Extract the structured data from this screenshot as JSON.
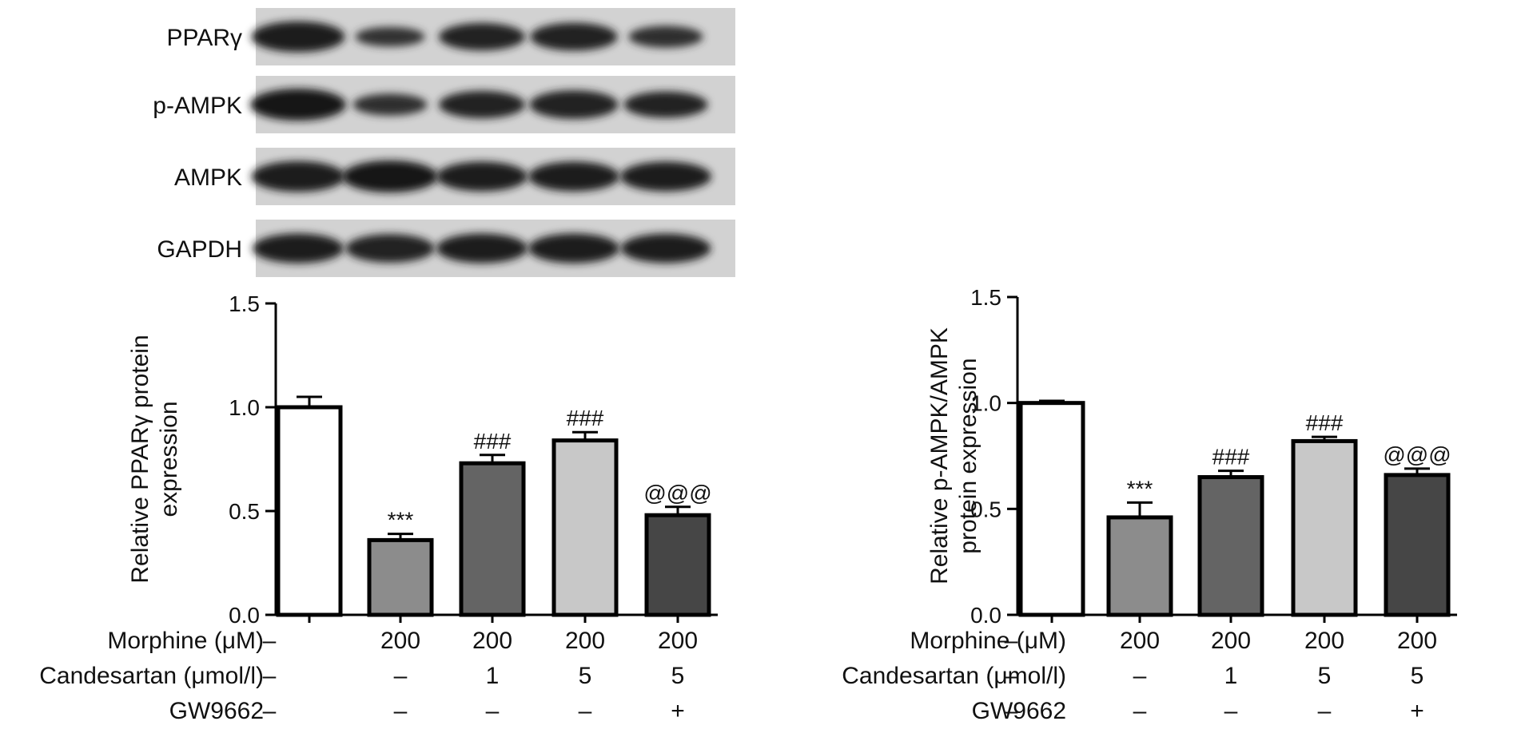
{
  "blot": {
    "labels": [
      "PPARγ",
      "p-AMPK",
      "AMPK",
      "GAPDH"
    ],
    "intensity": [
      [
        0.95,
        0.45,
        0.8,
        0.82,
        0.55
      ],
      [
        1.0,
        0.55,
        0.8,
        0.85,
        0.75
      ],
      [
        0.95,
        1.0,
        0.9,
        0.9,
        0.9
      ],
      [
        0.9,
        0.85,
        0.9,
        0.9,
        0.88
      ]
    ]
  },
  "conditions": {
    "rows": [
      {
        "label": "Morphine (μM)",
        "values": [
          "–",
          "200",
          "200",
          "200",
          "200"
        ]
      },
      {
        "label": "Candesartan (μmol/l)",
        "values": [
          "–",
          "–",
          "1",
          "5",
          "5"
        ]
      },
      {
        "label": "GW9662",
        "values": [
          "–",
          "–",
          "–",
          "–",
          "+"
        ]
      }
    ]
  },
  "chart_data": [
    {
      "type": "bar",
      "ylabel": [
        "Relative PPARγ protein",
        "expression"
      ],
      "ylim": [
        0,
        1.5
      ],
      "yticks": [
        "0.0",
        "0.5",
        "1.0",
        "1.5"
      ],
      "values": [
        1.0,
        0.36,
        0.73,
        0.84,
        0.48
      ],
      "errors": [
        0.05,
        0.03,
        0.04,
        0.04,
        0.04
      ],
      "annotations": [
        "",
        "***",
        "###",
        "###",
        "@@@"
      ],
      "colors": [
        "#ffffff",
        "#8c8c8c",
        "#646464",
        "#c8c8c8",
        "#464646"
      ]
    },
    {
      "type": "bar",
      "ylabel": [
        "Relative p-AMPK/AMPK",
        "protein expression"
      ],
      "ylim": [
        0,
        1.5
      ],
      "yticks": [
        "0.0",
        "0.5",
        "1.0",
        "1.5"
      ],
      "values": [
        1.0,
        0.46,
        0.65,
        0.82,
        0.66
      ],
      "errors": [
        0.01,
        0.07,
        0.03,
        0.02,
        0.03
      ],
      "annotations": [
        "",
        "***",
        "###",
        "###",
        "@@@"
      ],
      "colors": [
        "#ffffff",
        "#8c8c8c",
        "#646464",
        "#c8c8c8",
        "#464646"
      ]
    }
  ]
}
